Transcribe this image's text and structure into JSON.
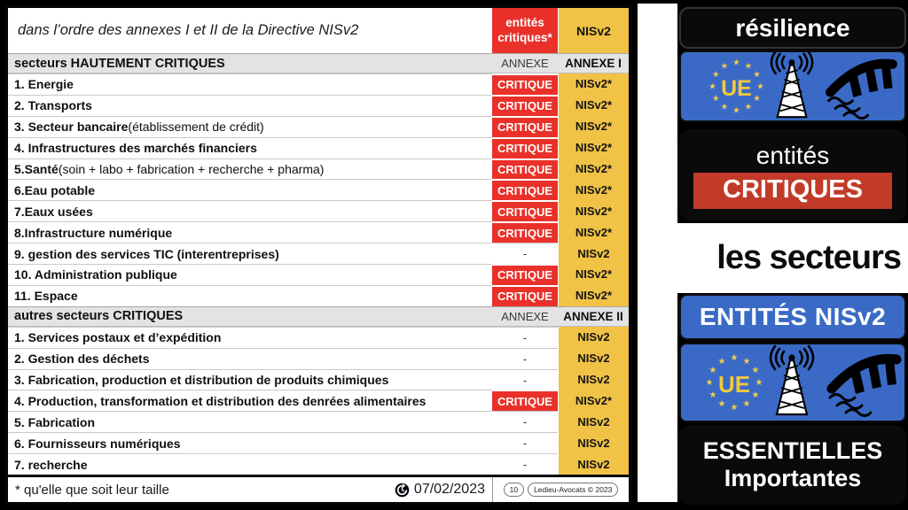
{
  "colors": {
    "table_red": "#E9312A",
    "gold": "#F0C246",
    "blue": "#3A6AC6",
    "badge_red": "#C23A28"
  },
  "table": {
    "caption": "dans l’ordre des annexes I et II de la Directive NISv2",
    "columns": {
      "critiques": "entités critiques*",
      "nisv2": "NISv2"
    },
    "sections": [
      {
        "title": "secteurs HAUTEMENT CRITIQUES",
        "annexe_label": "ANNEXE",
        "annexe_value": "ANNEXE I",
        "rows": [
          {
            "label": "1. Energie",
            "note": "",
            "critique": "CRITIQUE",
            "nisv2": "NISv2*"
          },
          {
            "label": "2. Transports",
            "note": "",
            "critique": "CRITIQUE",
            "nisv2": "NISv2*"
          },
          {
            "label": "3. Secteur bancaire",
            "note": " (établissement de crédit)",
            "critique": "CRITIQUE",
            "nisv2": "NISv2*"
          },
          {
            "label": "4. Infrastructures des marchés financiers",
            "note": "",
            "critique": "CRITIQUE",
            "nisv2": "NISv2*"
          },
          {
            "label": "5.Santé",
            "note": " (soin + labo + fabrication + recherche + pharma)",
            "critique": "CRITIQUE",
            "nisv2": "NISv2*"
          },
          {
            "label": "6.Eau potable",
            "note": "",
            "critique": "CRITIQUE",
            "nisv2": "NISv2*"
          },
          {
            "label": "7.Eaux usées",
            "note": "",
            "critique": "CRITIQUE",
            "nisv2": "NISv2*"
          },
          {
            "label": "8.Infrastructure numérique",
            "note": "",
            "critique": "CRITIQUE",
            "nisv2": "NISv2*"
          },
          {
            "label": "9. gestion des services TIC (interentreprises)",
            "note": "",
            "critique": "-",
            "nisv2": "NISv2"
          },
          {
            "label": "10. Administration publique",
            "note": "",
            "critique": "CRITIQUE",
            "nisv2": "NISv2*"
          },
          {
            "label": "11. Espace",
            "note": "",
            "critique": "CRITIQUE",
            "nisv2": "NISv2*"
          }
        ]
      },
      {
        "title": "autres secteurs CRITIQUES",
        "annexe_label": "ANNEXE",
        "annexe_value": "ANNEXE II",
        "rows": [
          {
            "label": "1. Services postaux et d’expédition",
            "note": "",
            "critique": "-",
            "nisv2": "NISv2"
          },
          {
            "label": "2. Gestion des déchets",
            "note": "",
            "critique": "-",
            "nisv2": "NISv2"
          },
          {
            "label": "3. Fabrication, production et distribution de produits chimiques",
            "note": "",
            "critique": "-",
            "nisv2": "NISv2"
          },
          {
            "label": "4. Production, transformation et distribution des denrées alimentaires",
            "note": "",
            "critique": "CRITIQUE",
            "nisv2": "NISv2*"
          },
          {
            "label": "5. Fabrication",
            "note": "",
            "critique": "-",
            "nisv2": "NISv2"
          },
          {
            "label": "6. Fournisseurs numériques",
            "note": "",
            "critique": "-",
            "nisv2": "NISv2"
          },
          {
            "label": "7. recherche",
            "note": "",
            "critique": "-",
            "nisv2": "NISv2"
          }
        ]
      }
    ],
    "footer": {
      "note": "* qu'elle que soit leur taille",
      "date": "07/02/2023",
      "page": "10",
      "credit": "Ledieu-Avocats © 2023"
    }
  },
  "sidebar": {
    "resilience": "résilience",
    "eu_label": "UE",
    "entites": "entités",
    "critiques": "CRITIQUES",
    "secteurs": "les secteurs",
    "entites_nisv2": "ENTITÉS NISv2",
    "essentielles": "ESSENTIELLES",
    "importantes": "Importantes"
  }
}
